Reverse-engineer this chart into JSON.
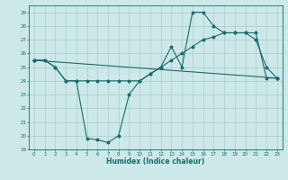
{
  "title": "",
  "xlabel": "Humidex (Indice chaleur)",
  "xlim": [
    -0.5,
    23.5
  ],
  "ylim": [
    19,
    29.5
  ],
  "yticks": [
    19,
    20,
    21,
    22,
    23,
    24,
    25,
    26,
    27,
    28,
    29
  ],
  "xticks": [
    0,
    1,
    2,
    3,
    4,
    5,
    6,
    7,
    8,
    9,
    10,
    11,
    12,
    13,
    14,
    15,
    16,
    17,
    18,
    19,
    20,
    21,
    22,
    23
  ],
  "bg_color": "#cce8e8",
  "grid_color": "#aacccc",
  "line_color": "#1a6b6b",
  "line1_x": [
    0,
    1,
    2,
    3,
    4,
    5,
    6,
    7,
    8,
    9,
    10,
    11,
    12,
    13,
    14,
    15,
    16,
    17,
    18,
    19,
    20,
    21,
    22,
    23
  ],
  "line1_y": [
    25.5,
    25.5,
    25.0,
    24.0,
    24.0,
    24.0,
    24.0,
    24.0,
    24.0,
    24.0,
    24.0,
    24.5,
    25.0,
    25.5,
    26.0,
    26.5,
    27.0,
    27.2,
    27.5,
    27.5,
    27.5,
    27.5,
    24.2,
    24.2
  ],
  "line2_x": [
    0,
    1,
    2,
    3,
    4,
    5,
    6,
    7,
    8,
    9,
    10,
    11,
    12,
    13,
    14,
    15,
    16,
    17,
    18,
    19,
    20,
    21,
    22,
    23
  ],
  "line2_y": [
    25.5,
    25.5,
    25.0,
    24.0,
    24.0,
    19.8,
    19.7,
    19.5,
    20.0,
    23.0,
    24.0,
    24.5,
    25.0,
    26.5,
    25.0,
    29.0,
    29.0,
    28.0,
    27.5,
    27.5,
    27.5,
    27.0,
    25.0,
    24.2
  ],
  "line3_x": [
    0,
    23
  ],
  "line3_y": [
    25.5,
    24.2
  ]
}
